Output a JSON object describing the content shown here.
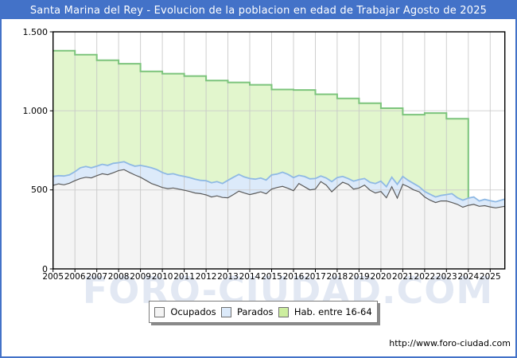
{
  "title": "Santa Marina del Rey - Evolucion de la poblacion en edad de Trabajar Agosto de 2025",
  "title_bar_color": "#4372c8",
  "watermark": "FORO-CIUDAD.COM",
  "footer": {
    "url": "http://www.foro-ciudad.com"
  },
  "legend": {
    "items": [
      {
        "label": "Ocupados",
        "color": "#f4f4f4",
        "border": "#707070"
      },
      {
        "label": "Parados",
        "color": "#dceafa",
        "border": "#707070"
      },
      {
        "label": "Hab. entre 16-64",
        "color": "#cdee9f",
        "border": "#707070"
      }
    ]
  },
  "chart_data": {
    "type": "area",
    "title": "Santa Marina del Rey - Evolucion de la poblacion en edad de Trabajar Agosto de 2025",
    "xlabel": "",
    "ylabel": "",
    "x_range": [
      2005,
      2025.67
    ],
    "y_range": [
      0,
      1500
    ],
    "x_ticks": [
      2005,
      2006,
      2007,
      2008,
      2009,
      2010,
      2011,
      2012,
      2013,
      2014,
      2015,
      2016,
      2017,
      2018,
      2019,
      2020,
      2021,
      2022,
      2023,
      2024,
      2025
    ],
    "y_ticks": [
      0,
      500,
      1000,
      1500
    ],
    "y_tick_labels": [
      "0",
      "500",
      "1.000",
      "1.500"
    ],
    "grid": true,
    "legend_position": "bottom",
    "series": [
      {
        "name": "Hab. entre 16-64",
        "type": "step-area",
        "fill": "#e2f6cd",
        "line": "#7cc47c",
        "years": [
          2005,
          2006,
          2007,
          2008,
          2009,
          2010,
          2011,
          2012,
          2013,
          2014,
          2015,
          2016,
          2017,
          2018,
          2019,
          2020,
          2021,
          2022,
          2023
        ],
        "values": [
          1380,
          1355,
          1320,
          1298,
          1250,
          1235,
          1220,
          1192,
          1180,
          1165,
          1135,
          1132,
          1105,
          1078,
          1048,
          1017,
          976,
          986,
          950
        ],
        "x_end": 2024
      },
      {
        "name": "Parados",
        "represents": "ocupados_plus_parados_top_edge",
        "type": "area",
        "fill": "#dceafa",
        "line": "#8fb9e4",
        "x_first": 2005,
        "x_step": 0.25,
        "values": [
          585,
          590,
          588,
          595,
          615,
          640,
          648,
          640,
          650,
          662,
          655,
          668,
          672,
          678,
          662,
          650,
          655,
          648,
          640,
          628,
          610,
          598,
          602,
          592,
          585,
          578,
          568,
          560,
          558,
          545,
          552,
          540,
          560,
          580,
          598,
          582,
          572,
          568,
          575,
          562,
          595,
          600,
          612,
          598,
          578,
          592,
          585,
          570,
          572,
          588,
          575,
          552,
          578,
          585,
          572,
          555,
          565,
          572,
          548,
          540,
          555,
          520,
          580,
          535,
          585,
          560,
          540,
          520,
          490,
          472,
          455,
          465,
          470,
          476,
          450,
          435,
          448,
          455,
          430,
          440,
          432,
          425,
          442
        ]
      },
      {
        "name": "Ocupados",
        "type": "area",
        "fill": "#f4f4f4",
        "line": "#5a5a5a",
        "x_first": 2005,
        "x_step": 0.25,
        "values": [
          528,
          538,
          532,
          542,
          558,
          572,
          580,
          576,
          590,
          602,
          596,
          608,
          622,
          628,
          610,
          594,
          580,
          560,
          540,
          528,
          515,
          508,
          512,
          505,
          498,
          490,
          480,
          476,
          468,
          455,
          462,
          452,
          450,
          470,
          492,
          480,
          470,
          478,
          488,
          475,
          505,
          515,
          522,
          510,
          495,
          540,
          520,
          500,
          505,
          552,
          530,
          488,
          520,
          548,
          535,
          505,
          512,
          530,
          498,
          480,
          490,
          450,
          520,
          448,
          535,
          520,
          500,
          488,
          455,
          435,
          420,
          430,
          430,
          420,
          408,
          390,
          402,
          408,
          396,
          400,
          392,
          386,
          396
        ]
      }
    ]
  }
}
